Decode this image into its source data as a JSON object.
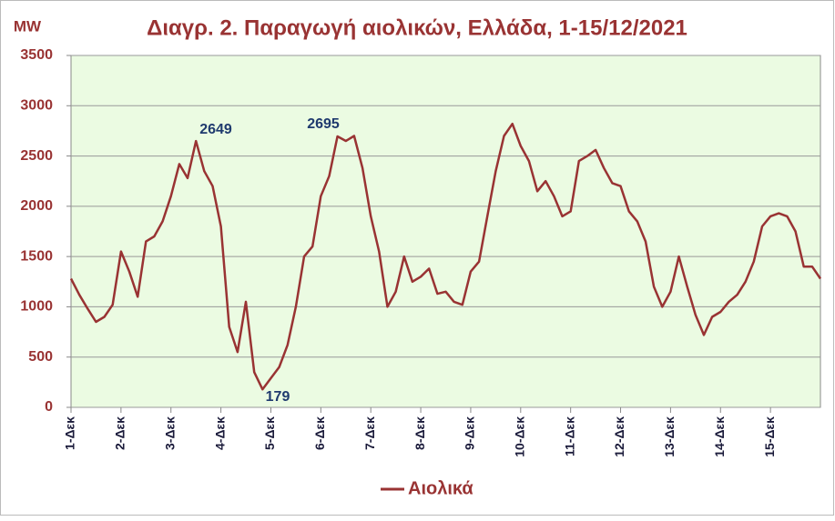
{
  "chart_data": {
    "type": "line",
    "title": "Διαγρ. 2. Παραγωγή αιολικών, Ελλάδα, 1-15/12/2021",
    "y_label": "MW",
    "categories": [
      "1-Δεκ",
      null,
      null,
      null,
      null,
      null,
      "2-Δεκ",
      null,
      null,
      null,
      null,
      null,
      "3-Δεκ",
      null,
      null,
      null,
      null,
      null,
      "4-Δεκ",
      null,
      null,
      null,
      null,
      null,
      "5-Δεκ",
      null,
      null,
      null,
      null,
      null,
      "6-Δεκ",
      null,
      null,
      null,
      null,
      null,
      "7-Δεκ",
      null,
      null,
      null,
      null,
      null,
      "8-Δεκ",
      null,
      null,
      null,
      null,
      null,
      "9-Δεκ",
      null,
      null,
      null,
      null,
      null,
      "10-Δεκ",
      null,
      null,
      null,
      null,
      null,
      "11-Δεκ",
      null,
      null,
      null,
      null,
      null,
      "12-Δεκ",
      null,
      null,
      null,
      null,
      null,
      "13-Δεκ",
      null,
      null,
      null,
      null,
      null,
      "14-Δεκ",
      null,
      null,
      null,
      null,
      null,
      "15-Δεκ",
      null,
      null,
      null,
      null,
      null,
      null
    ],
    "series": [
      {
        "name": "Αιολικά",
        "color": "#993333",
        "values": [
          1280,
          1120,
          980,
          850,
          900,
          1020,
          1550,
          1350,
          1100,
          1650,
          1700,
          1850,
          2100,
          2420,
          2280,
          2649,
          2350,
          2200,
          1800,
          800,
          550,
          1050,
          350,
          179,
          290,
          400,
          620,
          1000,
          1500,
          1600,
          2100,
          2300,
          2695,
          2650,
          2700,
          2380,
          1900,
          1550,
          1000,
          1150,
          1500,
          1250,
          1300,
          1380,
          1130,
          1150,
          1050,
          1020,
          1350,
          1450,
          1900,
          2350,
          2700,
          2820,
          2600,
          2450,
          2150,
          2250,
          2100,
          1900,
          1950,
          2450,
          2500,
          2560,
          2380,
          2230,
          2200,
          1950,
          1850,
          1650,
          1200,
          1000,
          1150,
          1500,
          1200,
          920,
          720,
          900,
          950,
          1050,
          1120,
          1250,
          1450,
          1800,
          1900,
          1930,
          1900,
          1750,
          1400,
          1400,
          1280
        ]
      }
    ],
    "annotations": [
      "2649",
      "2695",
      "179"
    ],
    "ylim": [
      0,
      3500
    ],
    "yticks": [
      0,
      500,
      1000,
      1500,
      2000,
      2500,
      3000,
      3500
    ],
    "grid": true,
    "legend": "bottom"
  }
}
